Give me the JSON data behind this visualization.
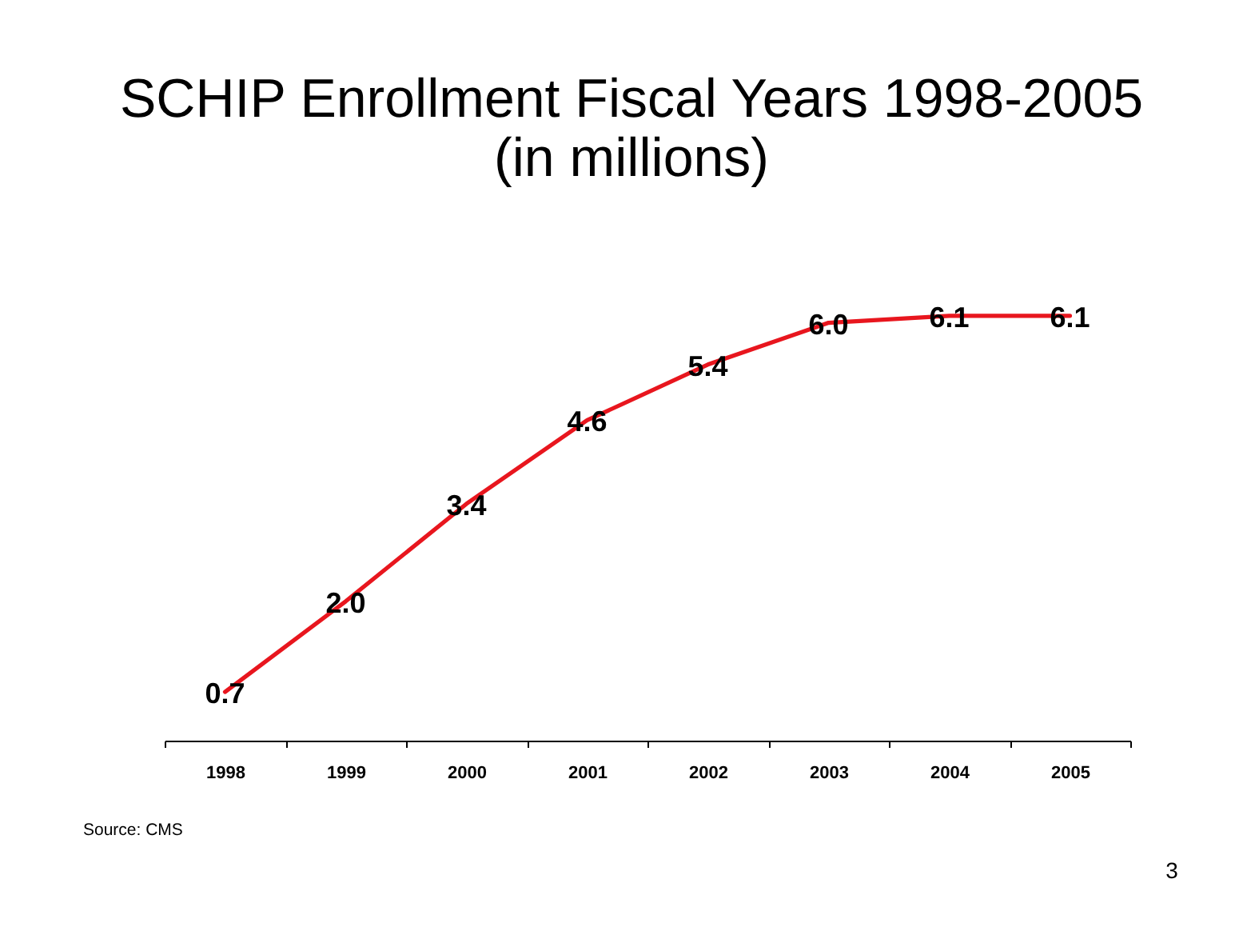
{
  "chart_data": {
    "type": "line",
    "title": "SCHIP Enrollment Fiscal Years 1998-2005",
    "subtitle": "(in millions)",
    "categories": [
      "1998",
      "1999",
      "2000",
      "2001",
      "2002",
      "2003",
      "2004",
      "2005"
    ],
    "series": [
      {
        "color": "#e8161e",
        "values": [
          0.7,
          2.0,
          3.4,
          4.6,
          5.4,
          6.0,
          6.1,
          6.1
        ],
        "value_labels": [
          "0.7",
          "2.0",
          "3.4",
          "4.6",
          "5.4",
          "6.0",
          "6.1",
          "6.1"
        ]
      }
    ],
    "annotations": [
      "Source: CMS",
      "3"
    ]
  }
}
